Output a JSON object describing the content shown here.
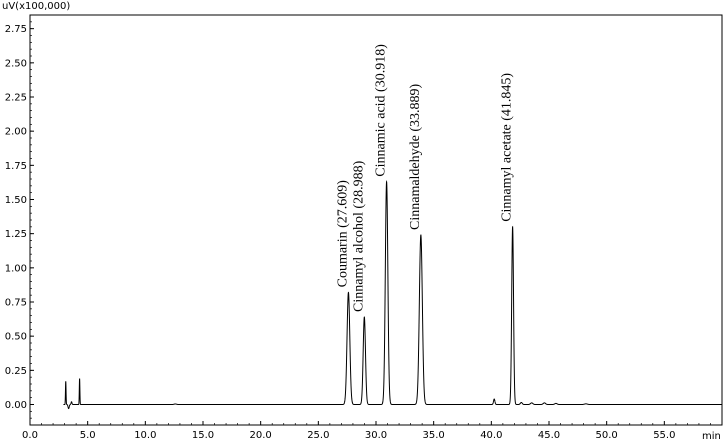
{
  "chart_data": {
    "type": "line",
    "y_unit_label": "uV(x100,000)",
    "x_unit_label": "min",
    "xlim": [
      0,
      60
    ],
    "ylim": [
      -0.15,
      2.85
    ],
    "xticks": [
      0,
      5,
      10,
      15,
      20,
      25,
      30,
      35,
      40,
      45,
      50,
      55
    ],
    "xtick_labels": [
      "0.0",
      "5.0",
      "10.0",
      "15.0",
      "20.0",
      "25.0",
      "30.0",
      "35.0",
      "40.0",
      "45.0",
      "50.0",
      "55.0"
    ],
    "yticks": [
      -0.25,
      0.0,
      0.25,
      0.5,
      0.75,
      1.0,
      1.25,
      1.5,
      1.75,
      2.0,
      2.25,
      2.5,
      2.75
    ],
    "ytick_labels": [
      "-0.25",
      "0.00",
      "0.25",
      "0.50",
      "0.75",
      "1.00",
      "1.25",
      "1.50",
      "1.75",
      "2.00",
      "2.25",
      "2.50",
      "2.75"
    ],
    "grid": false,
    "baseline": 0.0,
    "peaks": [
      {
        "label": "Coumarin (27.609)",
        "rt": 27.609,
        "height": 0.82,
        "width": 0.12
      },
      {
        "label": "Cinnamyl alcohol (28.988)",
        "rt": 28.988,
        "height": 0.64,
        "width": 0.1
      },
      {
        "label": "Cinnamic acid (30.918)",
        "rt": 30.918,
        "height": 1.63,
        "width": 0.11
      },
      {
        "label": "Cinnamaldehyde (33.889)",
        "rt": 33.889,
        "height": 1.24,
        "width": 0.13
      },
      {
        "label": "Cinnamyl acetate (41.845)",
        "rt": 41.845,
        "height": 1.3,
        "width": 0.08
      }
    ],
    "minor_peaks": [
      {
        "rt": 3.1,
        "height": 0.17,
        "width": 0.025
      },
      {
        "rt": 3.35,
        "height": -0.03,
        "width": 0.05
      },
      {
        "rt": 3.6,
        "height": 0.02,
        "width": 0.04
      },
      {
        "rt": 4.3,
        "height": 0.19,
        "width": 0.025
      },
      {
        "rt": 12.6,
        "height": 0.004,
        "width": 0.1
      },
      {
        "rt": 40.25,
        "height": 0.04,
        "width": 0.06
      },
      {
        "rt": 42.6,
        "height": 0.015,
        "width": 0.08
      },
      {
        "rt": 43.5,
        "height": 0.012,
        "width": 0.1
      },
      {
        "rt": 44.6,
        "height": 0.012,
        "width": 0.1
      },
      {
        "rt": 45.6,
        "height": 0.008,
        "width": 0.1
      },
      {
        "rt": 48.2,
        "height": 0.005,
        "width": 0.12
      }
    ],
    "colors": {
      "trace": "#000000",
      "axes": "#000000"
    }
  }
}
